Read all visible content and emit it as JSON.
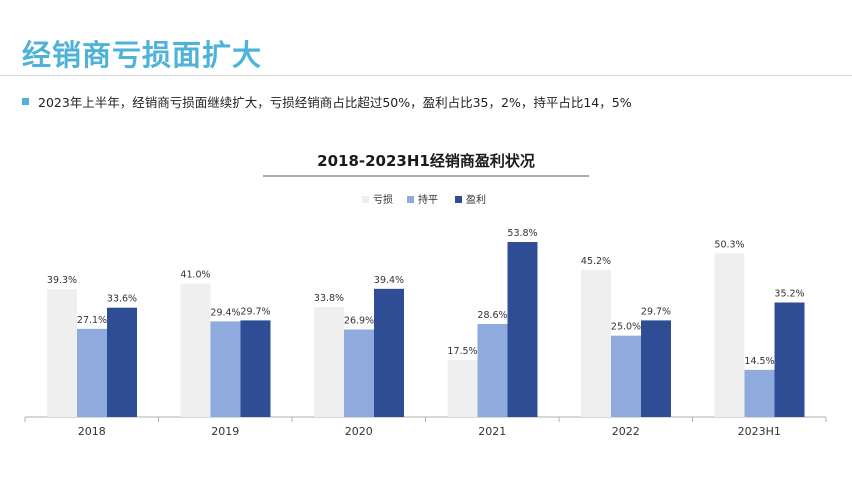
{
  "page": {
    "title": "经销商亏损面扩大",
    "bullet_text": "2023年上半年，经销商亏损面继续扩大，亏损经销商占比超过50%，盈利占比35，2%，持平占比14，5%"
  },
  "colors": {
    "title": "#4fb3d9",
    "bullet": "#4fb3d9",
    "loss": "#efefef",
    "flat": "#8faadc",
    "profit": "#2f4d95"
  },
  "chart_data": {
    "type": "bar",
    "title": "2018-2023H1经销商盈利状况",
    "categories": [
      "2018",
      "2019",
      "2020",
      "2021",
      "2022",
      "2023H1"
    ],
    "series": [
      {
        "name": "亏损",
        "color": "#efefef",
        "values": [
          39.3,
          41.0,
          33.8,
          17.5,
          45.2,
          50.3
        ]
      },
      {
        "name": "持平",
        "color": "#8faadc",
        "values": [
          27.1,
          29.4,
          26.9,
          28.6,
          25.0,
          14.5
        ]
      },
      {
        "name": "盈利",
        "color": "#2f4d95",
        "values": [
          33.6,
          29.7,
          39.4,
          53.8,
          29.7,
          35.2
        ]
      }
    ],
    "value_format": "%",
    "legend_position": "top-center",
    "ylim": [
      0,
      60
    ],
    "grid": false
  }
}
